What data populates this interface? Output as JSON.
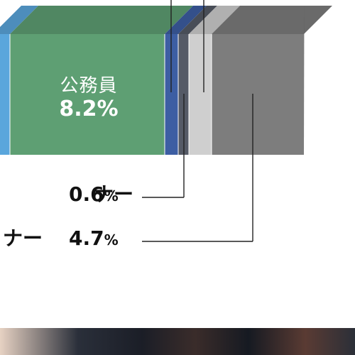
{
  "chart_data": {
    "type": "bar",
    "orientation": "horizontal-stacked-100",
    "segments": [
      {
        "name": "",
        "value": null,
        "color": "#5aa6dc"
      },
      {
        "name": "公務員",
        "value": 8.2,
        "label": "8.2%",
        "color": "#5e9f73"
      },
      {
        "name": "",
        "value": null,
        "color": "#3d5ea3"
      },
      {
        "name": "",
        "value": null,
        "color": "#555a66"
      },
      {
        "name": "",
        "value": 0.6,
        "color": "#cfcfcf"
      },
      {
        "name": "",
        "value": 4.7,
        "color": "#7d7d7d"
      }
    ],
    "callouts": [
      {
        "partial_text": "ナー",
        "value": "0.6",
        "unit": "%"
      },
      {
        "partial_text": "ナー",
        "value": "4.7",
        "unit": "%"
      }
    ]
  },
  "photo": {
    "icon": "photo-strip-image"
  }
}
